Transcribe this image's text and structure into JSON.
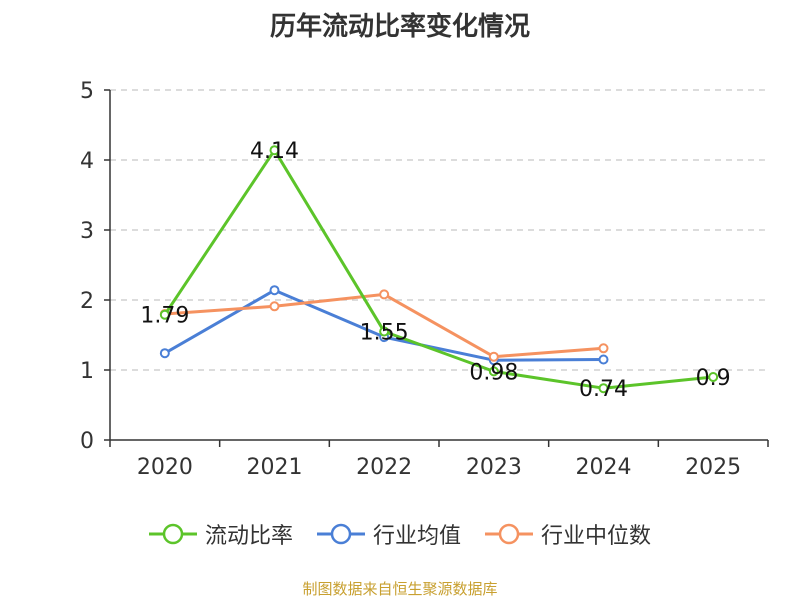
{
  "chart_data": {
    "type": "line",
    "title": "历年流动比率变化情况",
    "categories": [
      "2020",
      "2021",
      "2022",
      "2023",
      "2024",
      "2025"
    ],
    "yticks": [
      "0",
      "1",
      "2",
      "3",
      "4",
      "5"
    ],
    "ylim": [
      0,
      5
    ],
    "grid": true,
    "legend_position": "bottom",
    "series": [
      {
        "name": "流动比率",
        "color": "#5cc42a",
        "values": [
          1.79,
          4.14,
          1.55,
          0.98,
          0.74,
          0.9
        ],
        "labels": [
          "1.79",
          "4.14",
          "1.55",
          "0.98",
          "0.74",
          "0.9"
        ]
      },
      {
        "name": "行业均值",
        "color": "#4a7fd6",
        "values": [
          1.24,
          2.14,
          1.47,
          1.14,
          1.15,
          null
        ]
      },
      {
        "name": "行业中位数",
        "color": "#f59260",
        "values": [
          1.8,
          1.91,
          2.08,
          1.19,
          1.31,
          null
        ]
      }
    ]
  },
  "source_text": "制图数据来自恒生聚源数据库"
}
